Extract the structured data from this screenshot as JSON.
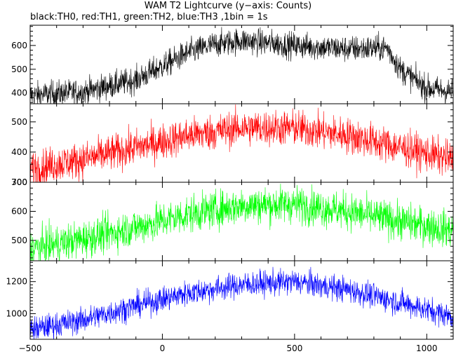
{
  "header": {
    "title": "WAM T2 Lightcurve (y−axis: Counts)",
    "subtitle": "black:TH0, red:TH1, green:TH2, blue:TH3 ,1bin = 1s"
  },
  "chart_data": [
    {
      "type": "line",
      "series": [
        {
          "name": "TH0",
          "color": "#000000"
        }
      ],
      "xlim": [
        -500,
        1100
      ],
      "ylim": [
        355,
        685
      ],
      "y_ticks": [
        400,
        500,
        600
      ],
      "profile_x": [
        -500,
        -300,
        -100,
        100,
        200,
        300,
        500,
        700,
        850,
        900,
        1000,
        1100
      ],
      "profile_y": [
        390,
        405,
        455,
        570,
        605,
        620,
        600,
        585,
        590,
        500,
        420,
        405
      ],
      "noise": 28,
      "grid": false
    },
    {
      "type": "line",
      "series": [
        {
          "name": "TH1",
          "color": "#ff0000"
        }
      ],
      "xlim": [
        -500,
        1100
      ],
      "ylim": [
        300,
        560
      ],
      "y_ticks": [
        300,
        400,
        500
      ],
      "profile_x": [
        -500,
        -300,
        -100,
        100,
        300,
        500,
        700,
        900,
        1100
      ],
      "profile_y": [
        345,
        375,
        415,
        455,
        480,
        480,
        455,
        415,
        375
      ],
      "noise": 30,
      "grid": false
    },
    {
      "type": "line",
      "series": [
        {
          "name": "TH2",
          "color": "#00ff00"
        }
      ],
      "xlim": [
        -500,
        1100
      ],
      "ylim": [
        430,
        700
      ],
      "y_ticks": [
        500,
        600,
        700
      ],
      "profile_x": [
        -500,
        -300,
        -100,
        100,
        300,
        500,
        700,
        900,
        1100
      ],
      "profile_y": [
        470,
        505,
        545,
        590,
        620,
        625,
        600,
        565,
        535
      ],
      "noise": 32,
      "grid": false
    },
    {
      "type": "line",
      "series": [
        {
          "name": "TH3",
          "color": "#0000ff"
        }
      ],
      "xlim": [
        -500,
        1100
      ],
      "ylim": [
        840,
        1330
      ],
      "y_ticks": [
        1000,
        1200
      ],
      "profile_x": [
        -500,
        -300,
        -100,
        100,
        300,
        500,
        700,
        900,
        1100
      ],
      "profile_y": [
        900,
        960,
        1050,
        1130,
        1180,
        1200,
        1150,
        1070,
        980
      ],
      "noise": 40,
      "grid": false
    }
  ],
  "x_ticks": [
    -500,
    0,
    500,
    1000
  ],
  "x_tick_labels": [
    "−500",
    "0",
    "500",
    "1000"
  ],
  "colors": {
    "axis": "#000000",
    "background": "#ffffff"
  }
}
